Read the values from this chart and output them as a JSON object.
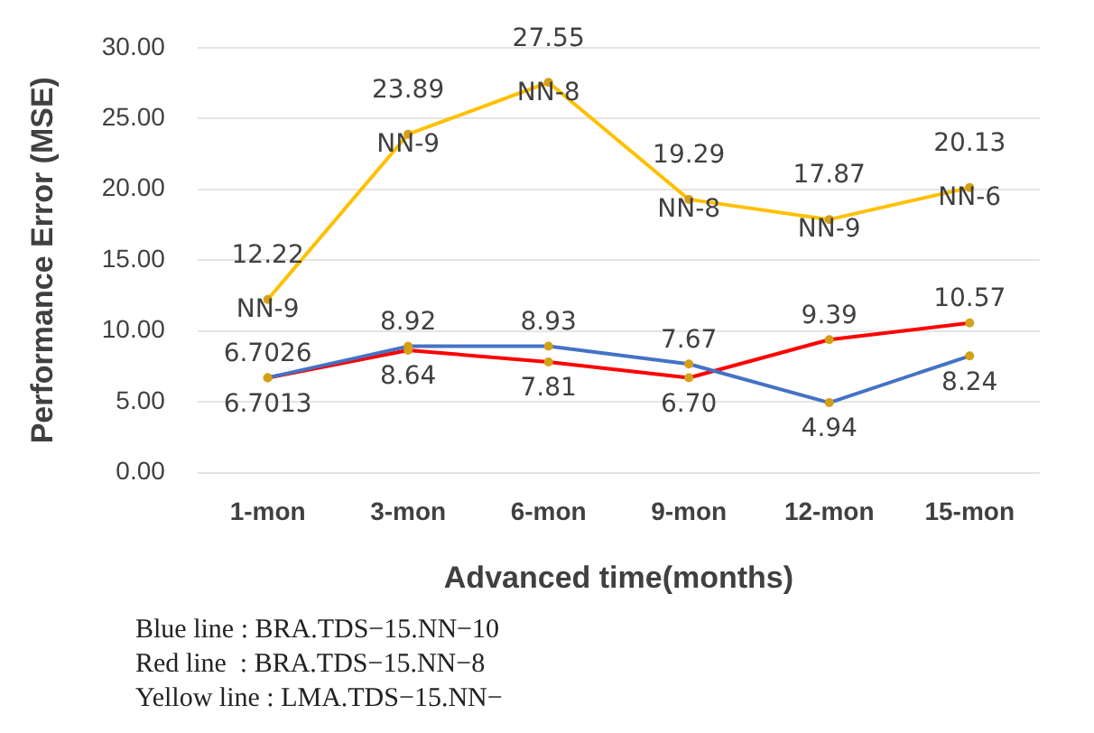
{
  "chart_data": {
    "type": "line",
    "xlabel": "Advanced time(months)",
    "ylabel": "Performance Error (MSE)",
    "categories": [
      "1-mon",
      "3-mon",
      "6-mon",
      "9-mon",
      "12-mon",
      "15-mon"
    ],
    "series": [
      {
        "color": "#4472c4",
        "values": [
          6.7026,
          8.92,
          8.93,
          7.67,
          4.94,
          8.24
        ],
        "value_labels": [
          "6.7026",
          "8.92",
          "8.93",
          "7.67",
          "4.94",
          "8.24"
        ]
      },
      {
        "color": "#ff0000",
        "values": [
          6.7013,
          8.64,
          7.81,
          6.7,
          9.39,
          10.57
        ],
        "value_labels": [
          "6.7013",
          "8.64",
          "7.81",
          "6.70",
          "9.39",
          "10.57"
        ]
      },
      {
        "color": "#ffc000",
        "values": [
          12.22,
          23.89,
          27.55,
          19.29,
          17.87,
          20.13
        ],
        "value_labels": [
          "12.22\nNN-9",
          "23.89\nNN-9",
          "27.55\nNN-8",
          "19.29\nNN-8",
          "17.87\nNN-9",
          "20.13\nNN-6"
        ]
      }
    ],
    "ylim": [
      0,
      30
    ],
    "yticks": [
      {
        "value": 0,
        "label": "0.00"
      },
      {
        "value": 5,
        "label": "5.00"
      },
      {
        "value": 10,
        "label": "10.00"
      },
      {
        "value": 15,
        "label": "15.00"
      },
      {
        "value": 20,
        "label": "20.00"
      },
      {
        "value": 25,
        "label": "25.00"
      },
      {
        "value": 30,
        "label": "30.00"
      }
    ],
    "grid": "y",
    "legend": false,
    "marker": "circle",
    "line_style": "solid",
    "annotations": [
      "Blue line : BRA.TDS−15.NN−10",
      "Red line  : BRA.TDS−15.NN−8",
      "Yellow line : LMA.TDS−15.NN−"
    ]
  }
}
